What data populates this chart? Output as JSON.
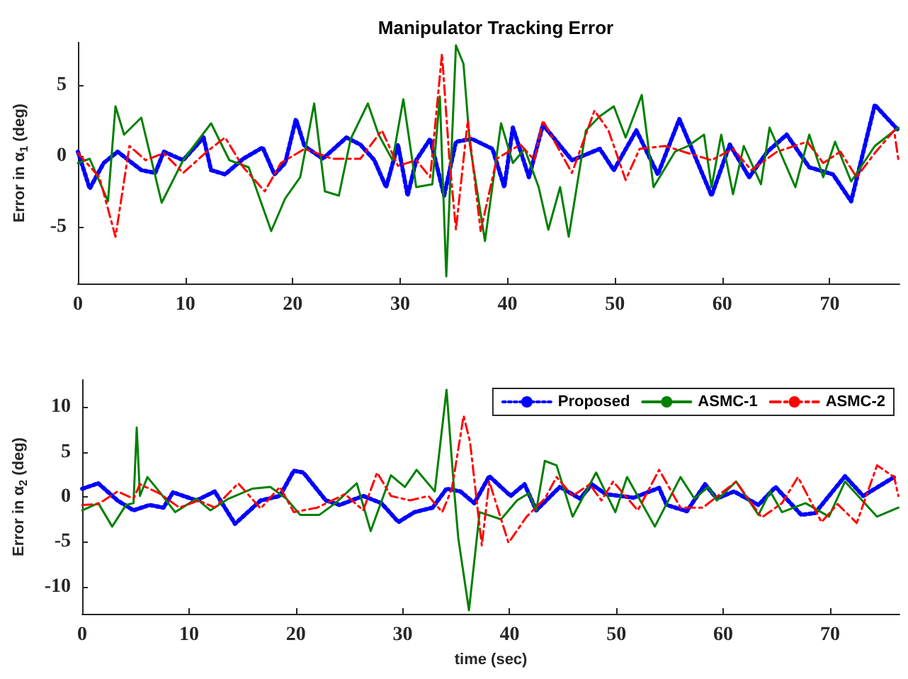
{
  "chart_data": [
    {
      "type": "line",
      "title": "Manipulator Tracking Error",
      "ylabel": "Error in α$_{1}$ (deg)",
      "xlim": [
        0,
        76.5
      ],
      "xticks": [
        0,
        10,
        20,
        30,
        40,
        50,
        60,
        70
      ],
      "ylim": [
        -9,
        8
      ],
      "yticks": [
        -5,
        0,
        5
      ],
      "grid": false,
      "legend": false,
      "marker": "none",
      "series": [
        {
          "color": "#0000ff",
          "line_style": "dotted",
          "x": [
            0,
            1.1,
            2.4,
            3.7,
            5.9,
            7.2,
            8,
            9.8,
            11.7,
            12.4,
            13.7,
            15.4,
            17.2,
            18.3,
            19.3,
            20.3,
            21.1,
            22.8,
            25,
            26.3,
            27.6,
            28.7,
            29.8,
            30.7,
            31.5,
            32.8,
            34.1,
            35.2,
            36.7,
            38.6,
            39.7,
            40.5,
            42,
            43.3,
            46,
            48.6,
            49.9,
            52,
            54,
            56,
            59,
            60.7,
            62.5,
            64.2,
            66,
            68.1,
            70.3,
            72,
            74.2,
            76.4
          ],
          "values": [
            0.3,
            -2.3,
            -0.5,
            0.3,
            -1,
            -1.2,
            0.3,
            -0.3,
            1.3,
            -1,
            -1.3,
            -0.2,
            0.6,
            -1.3,
            -0.5,
            2.6,
            0.7,
            -0.2,
            1.3,
            0.8,
            -0.3,
            -2.2,
            0.8,
            -2.8,
            -0.3,
            1.2,
            -2.8,
            1,
            1.2,
            0.5,
            -2.2,
            2,
            -1.5,
            2.2,
            -0.3,
            0.5,
            -1,
            1.8,
            -1.3,
            2.6,
            -2.8,
            0.8,
            -1.5,
            0.3,
            1.5,
            -0.8,
            -1.3,
            -3.2,
            3.6,
            1.8
          ]
        },
        {
          "color": "#008000",
          "line_style": "solid",
          "x": [
            0,
            1.1,
            2.8,
            3.5,
            4.3,
            5.9,
            7.8,
            9.8,
            12.4,
            14.1,
            15.9,
            18,
            19.3,
            20.7,
            22,
            23,
            24.3,
            25.4,
            27,
            28,
            29.3,
            30.3,
            31.5,
            33,
            33.7,
            34.3,
            35.2,
            35.9,
            36.5,
            37.9,
            39.4,
            40.5,
            41.6,
            42.9,
            43.8,
            44.9,
            45.7,
            47.3,
            48.6,
            49.9,
            51,
            52.5,
            53.6,
            55.6,
            56.8,
            58.3,
            59,
            59.9,
            61,
            62,
            63.6,
            64.4,
            66.8,
            68.1,
            69.4,
            70.5,
            72,
            74.2,
            76.4
          ],
          "values": [
            -0.5,
            -0.2,
            -3.2,
            3.5,
            1.5,
            2.7,
            -3.3,
            -0.3,
            2.3,
            -0.3,
            -0.8,
            -5.3,
            -3,
            -1.5,
            3.7,
            -2.5,
            -2.8,
            1.2,
            3.7,
            1.5,
            -0.3,
            4,
            -2.2,
            -2,
            4.2,
            -8.5,
            7.8,
            6.5,
            0.8,
            -6,
            2.3,
            -0.5,
            0.5,
            -2.2,
            -5.2,
            -2.2,
            -5.7,
            1.8,
            2.8,
            3.5,
            1.3,
            4.3,
            -2.2,
            0.3,
            0.7,
            1.5,
            -2.2,
            1.5,
            -2.7,
            0.7,
            -2,
            2,
            -2.2,
            1.5,
            -1.5,
            1,
            -1.8,
            0.7,
            2
          ]
        },
        {
          "color": "#ff0000",
          "line_style": "dashed",
          "x": [
            0,
            2,
            3.5,
            4.8,
            6.3,
            8,
            9.8,
            12,
            13.7,
            15.4,
            17.4,
            18.9,
            21.1,
            23.7,
            26.3,
            28.3,
            29.8,
            31.5,
            32.8,
            33.9,
            34.6,
            35.2,
            36.3,
            37.5,
            39,
            41.2,
            42.5,
            43.3,
            46,
            48.1,
            49.4,
            51,
            52.3,
            54.7,
            56.8,
            59,
            61,
            62.7,
            65.1,
            67.9,
            69.4,
            71,
            72.5,
            74.2,
            76,
            76.4
          ],
          "values": [
            0.2,
            -1.5,
            -5.7,
            0.7,
            -0.3,
            0.2,
            -1.2,
            0.3,
            1.3,
            -0.8,
            -2.5,
            -0.5,
            0.5,
            -0.2,
            -0.2,
            1.8,
            -0.7,
            -0.3,
            -1.5,
            7.2,
            -0.3,
            -5.2,
            2.5,
            -5.3,
            -0.2,
            0.8,
            -0.3,
            2.5,
            -1.2,
            3.2,
            1.8,
            -1.7,
            0.5,
            0.7,
            0.2,
            -0.3,
            0.5,
            -1,
            0.3,
            1,
            -0.5,
            0.3,
            -1.5,
            0.2,
            1.8,
            -0.3
          ]
        }
      ]
    },
    {
      "type": "line",
      "xlabel": "time (sec)",
      "ylabel": "Error in α$_{2}$ (deg)",
      "xlim": [
        0,
        76.5
      ],
      "xticks": [
        0,
        10,
        20,
        30,
        40,
        50,
        60,
        70
      ],
      "ylim": [
        -13,
        13
      ],
      "yticks": [
        -10,
        -5,
        0,
        5,
        10
      ],
      "grid": false,
      "legend": "top right",
      "marker": "none",
      "series": [
        {
          "name": "Proposed",
          "color": "#0000ff",
          "line_style": "dotted",
          "x": [
            0,
            1.5,
            3.3,
            4.8,
            6.3,
            7.6,
            8.5,
            10.7,
            12.4,
            14.3,
            16.7,
            18.5,
            19.8,
            20.7,
            22.8,
            24.1,
            26.3,
            28,
            29.6,
            31.1,
            32.8,
            34.1,
            35.4,
            36.7,
            38.1,
            40.1,
            41.4,
            42.5,
            44.7,
            46.6,
            47.7,
            49,
            51.6,
            54,
            54.7,
            56.6,
            58.3,
            59.4,
            61,
            63.3,
            64.9,
            67.3,
            68.6,
            71.4,
            73.1,
            76
          ],
          "values": [
            0.9,
            1.5,
            -0.4,
            -1.5,
            -0.9,
            -1.2,
            0.5,
            -0.4,
            0.6,
            -3,
            -0.4,
            0.1,
            2.9,
            2.7,
            -0.4,
            -0.9,
            0.1,
            -0.7,
            -2.8,
            -1.7,
            -1.2,
            0.9,
            0.6,
            -0.7,
            2.3,
            0.1,
            1.4,
            -1.5,
            1.1,
            -0.2,
            1.4,
            0.3,
            -0.1,
            1,
            -0.9,
            -1.6,
            1.4,
            -0.2,
            0.6,
            -0.9,
            1.1,
            -2,
            -1.8,
            2.3,
            0.1,
            2.2
          ]
        },
        {
          "name": "ASMC-1",
          "color": "#008000",
          "line_style": "solid",
          "x": [
            0,
            1.5,
            2.8,
            4.1,
            4.8,
            5.1,
            5.4,
            6.1,
            7.2,
            8.7,
            10.7,
            12,
            13.7,
            15.9,
            17.6,
            19.1,
            20.4,
            22.2,
            23.7,
            25.7,
            27,
            28.9,
            30.2,
            31.3,
            33,
            34.1,
            34.8,
            35.2,
            36.2,
            37.2,
            39.2,
            40.7,
            41.8,
            42.5,
            43.3,
            44.4,
            45.9,
            48.1,
            49.9,
            51,
            53.6,
            56,
            57.3,
            58.6,
            59.4,
            61.2,
            63.3,
            64.4,
            65.5,
            67.7,
            69.9,
            71.4,
            74.4,
            76.4
          ],
          "values": [
            -1.5,
            -0.7,
            -3.3,
            -0.9,
            -0.7,
            7.7,
            0.1,
            2.2,
            0.6,
            -1.7,
            -0.2,
            -1.5,
            -0.2,
            0.9,
            1.1,
            -0.2,
            -2,
            -2,
            -0.7,
            1.5,
            -3.8,
            2.4,
            1.1,
            3,
            0.6,
            11.9,
            0.9,
            -4.6,
            -12.6,
            -1.7,
            -2.5,
            -0.4,
            0.4,
            -1.5,
            4,
            3.5,
            -2.2,
            2.7,
            -1.7,
            2.2,
            -3.3,
            2.2,
            -0.2,
            1.1,
            -0.4,
            1.7,
            -2,
            0.6,
            -1.7,
            -0.7,
            -2.2,
            1.7,
            -2.2,
            -1.2
          ]
        },
        {
          "name": "ASMC-2",
          "color": "#ff0000",
          "line_style": "dashed",
          "x": [
            0,
            1.5,
            3.3,
            4.8,
            5.4,
            7.2,
            9.1,
            10.9,
            12.4,
            14.6,
            16.7,
            18.5,
            19.8,
            22,
            24.6,
            26.3,
            27.6,
            28.9,
            30.7,
            32.4,
            33.7,
            34.6,
            35.7,
            36.3,
            37.4,
            38.1,
            39.9,
            41.6,
            43.3,
            44.4,
            45.9,
            47.5,
            48.6,
            49.7,
            52,
            54,
            56,
            58.1,
            61.2,
            63.6,
            65.5,
            67,
            69.2,
            70.7,
            72.5,
            74.4,
            76,
            76.4
          ],
          "values": [
            -0.9,
            -0.8,
            0.6,
            -0.2,
            1.4,
            0.4,
            -1.2,
            -0.4,
            -1.2,
            1.5,
            -1.3,
            1.1,
            -1.7,
            -1.2,
            0.3,
            -1.5,
            2.7,
            0.1,
            -0.4,
            0.1,
            -1.7,
            0.9,
            9,
            6.1,
            -5.4,
            1.7,
            -5.1,
            -2.2,
            -0.2,
            2.2,
            0.1,
            1.4,
            -0.4,
            1.7,
            -1.5,
            3,
            -1.2,
            -1.2,
            1.7,
            -2.3,
            -0.7,
            2.2,
            -2.8,
            -0.8,
            -2.9,
            3.5,
            2.2,
            0.1
          ]
        }
      ]
    }
  ]
}
